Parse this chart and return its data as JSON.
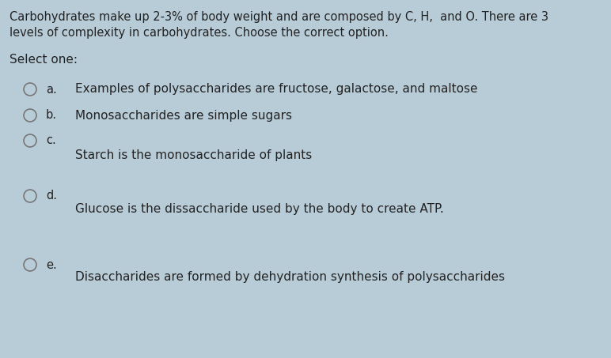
{
  "background_color": "#b8ccd8",
  "text_color": "#222222",
  "question_line1": "Carbohydrates make up 2-3% of body weight and are composed by C, H,  and O. There are 3",
  "question_line2": "levels of complexity in carbohydrates. Choose the correct option.",
  "select_one": "Select one:",
  "options": [
    {
      "label": "a.",
      "text": "Examples of polysaccharides are fructose, galactose, and maltose"
    },
    {
      "label": "b.",
      "text": "Monosaccharides are simple sugars"
    },
    {
      "label": "c.",
      "text": "Starch is the monosaccharide of plants"
    },
    {
      "label": "d.",
      "text": "Glucose is the dissaccharide used by the body to create ATP."
    },
    {
      "label": "e.",
      "text": "Disaccharides are formed by dehydration synthesis of polysaccharides"
    }
  ],
  "circle_color": "#777777",
  "question_fontsize": 10.5,
  "option_fontsize": 11.0,
  "label_fontsize": 10.5,
  "select_fontsize": 11.0
}
